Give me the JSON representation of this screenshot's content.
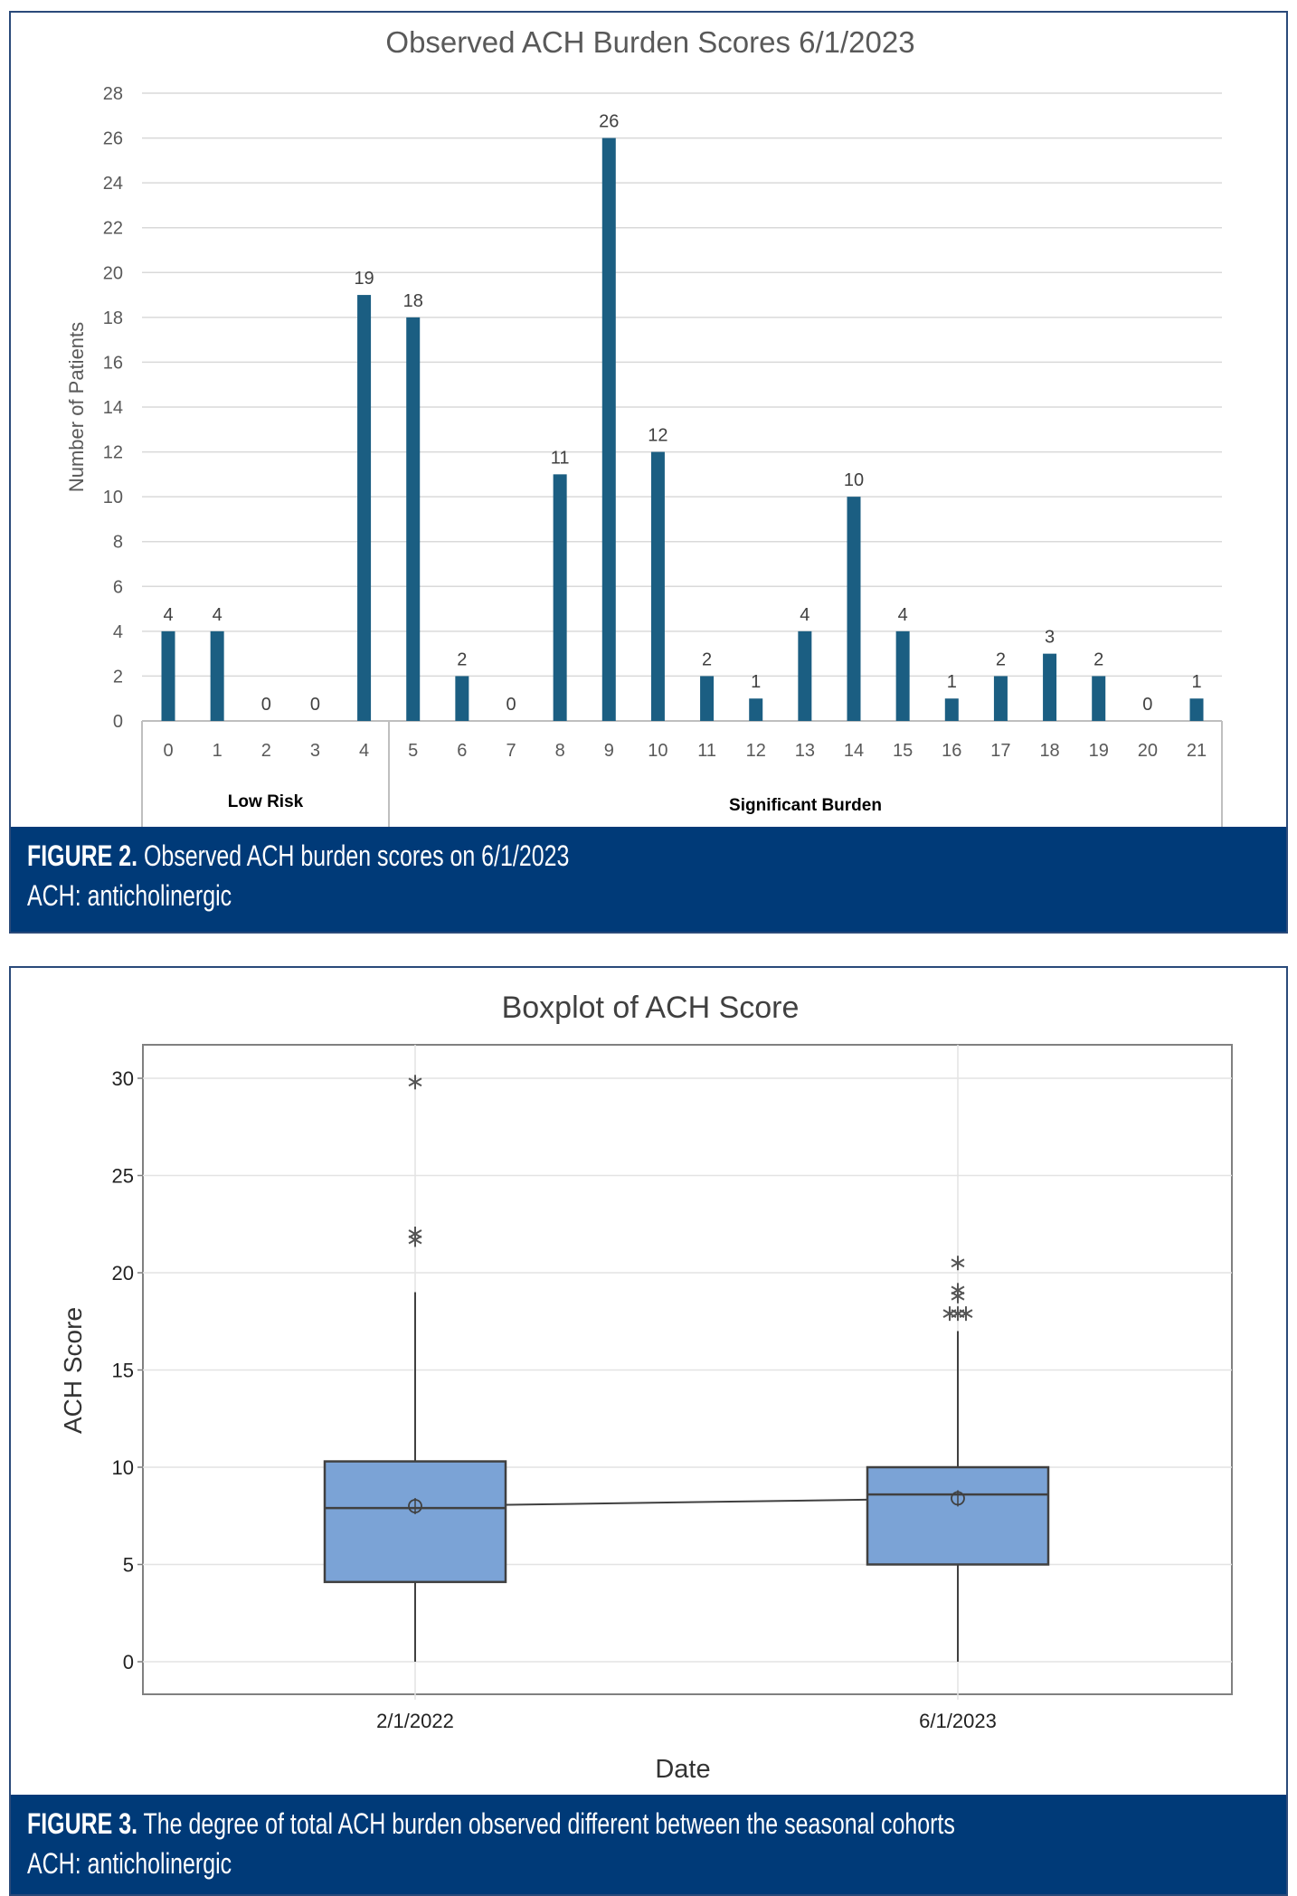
{
  "figure2": {
    "caption_label": "FIGURE 2.",
    "caption_text": "Observed ACH burden scores on 6/1/2023",
    "caption_note": "ACH: anticholinergic"
  },
  "figure3": {
    "caption_label": "FIGURE 3.",
    "caption_text": "The degree of total ACH burden observed different between the seasonal cohorts",
    "caption_note": "ACH: anticholinergic"
  },
  "colors": {
    "bar": "#1b5e82",
    "box": "#7ba3d6",
    "caption_bg": "#003a78"
  },
  "chart_data": [
    {
      "type": "bar",
      "title": "Observed ACH Burden Scores 6/1/2023",
      "xlabel": "",
      "ylabel": "Number of Patients",
      "ylim": [
        0,
        28
      ],
      "yticks": [
        0,
        2,
        4,
        6,
        8,
        10,
        12,
        14,
        16,
        18,
        20,
        22,
        24,
        26,
        28
      ],
      "grid": true,
      "categories": [
        "0",
        "1",
        "2",
        "3",
        "4",
        "5",
        "6",
        "7",
        "8",
        "9",
        "10",
        "11",
        "12",
        "13",
        "14",
        "15",
        "16",
        "17",
        "18",
        "19",
        "20",
        "21"
      ],
      "values": [
        4,
        4,
        0,
        0,
        19,
        18,
        2,
        0,
        11,
        26,
        12,
        2,
        1,
        4,
        10,
        4,
        1,
        2,
        3,
        2,
        0,
        1
      ],
      "groups": [
        {
          "label": "Low Risk",
          "from": "0",
          "to": "4"
        },
        {
          "label": "Significant Burden",
          "from": "5",
          "to": "21"
        }
      ]
    },
    {
      "type": "boxplot",
      "title": "Boxplot of ACH Score",
      "xlabel": "Date",
      "ylabel": "ACH Score",
      "ylim": [
        -1.7,
        32
      ],
      "yticks": [
        0,
        5,
        10,
        15,
        20,
        25,
        30
      ],
      "grid": true,
      "categories": [
        "2/1/2022",
        "6/1/2023"
      ],
      "series": [
        {
          "name": "2/1/2022",
          "whisker_low": 0,
          "q1": 4.1,
          "median": 7.9,
          "q3": 10.3,
          "whisker_high": 19,
          "mean": 8.0,
          "outliers": [
            29.8,
            22.0,
            21.7
          ]
        },
        {
          "name": "6/1/2023",
          "whisker_low": 0,
          "q1": 5.0,
          "median": 8.6,
          "q3": 10.0,
          "whisker_high": 17,
          "mean": 8.4,
          "outliers": [
            20.5,
            19.1,
            18.8,
            17.9,
            17.9,
            17.9
          ]
        }
      ]
    }
  ]
}
